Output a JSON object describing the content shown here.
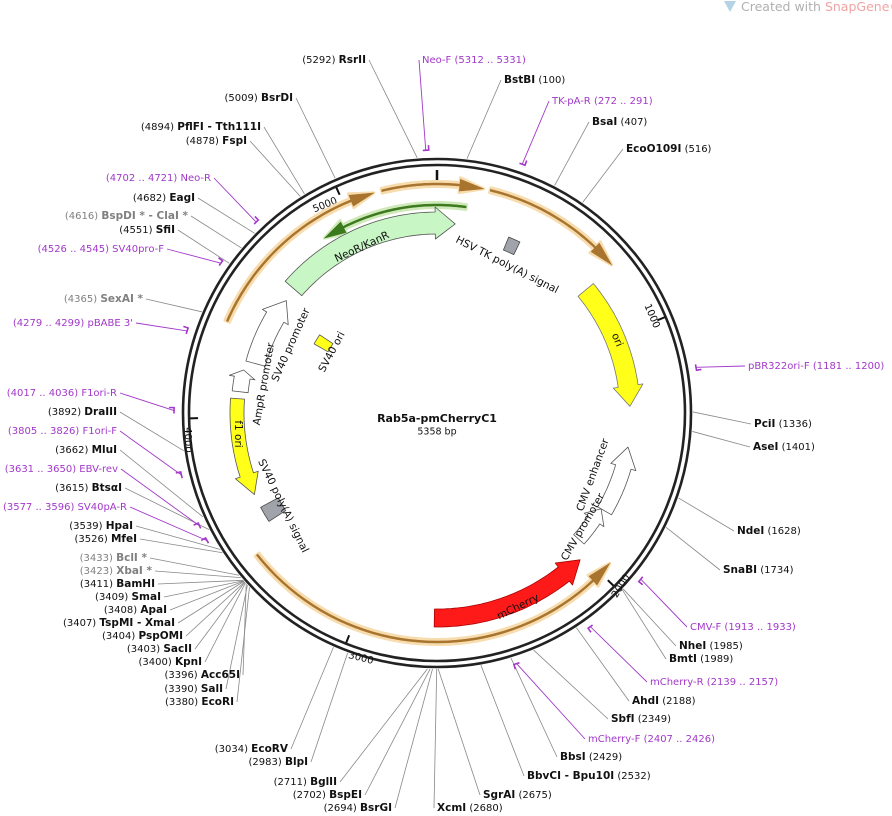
{
  "header": {
    "prefix": "Created with",
    "brand": "SnapGene®"
  },
  "plasmid": {
    "name": "Rab5a-pmCherryC1",
    "length": "5358 bp"
  },
  "ruler": [
    1000,
    2000,
    3000,
    4000,
    5000
  ],
  "site_color": "#111111",
  "primer_color": "#a238c9",
  "sites": [
    {
      "name": "BstBI",
      "position": "(100)"
    },
    {
      "name": "BsaI",
      "position": "(407)"
    },
    {
      "name": "EcoO109I",
      "position": "(516)"
    },
    {
      "name": "PciI",
      "position": "(1336)"
    },
    {
      "name": "AseI",
      "position": "(1401)"
    },
    {
      "name": "NdeI",
      "position": "(1628)"
    },
    {
      "name": "SnaBI",
      "position": "(1734)"
    },
    {
      "name": "NheI",
      "position": "(1985)"
    },
    {
      "name": "BmtI",
      "position": "(1989)"
    },
    {
      "name": "AhdI",
      "position": "(2188)"
    },
    {
      "name": "SbfI",
      "position": "(2349)"
    },
    {
      "name": "BbsI",
      "position": "(2429)"
    },
    {
      "name": "BbvCI - Bpu10I",
      "position": "(2532)"
    },
    {
      "name": "SgrAI",
      "position": "(2675)"
    },
    {
      "name": "XcmI",
      "position": "(2680)"
    },
    {
      "name": "BsrGI",
      "position": "(2694)"
    },
    {
      "name": "BspEI",
      "position": "(2702)"
    },
    {
      "name": "BglII",
      "position": "(2711)"
    },
    {
      "name": "BlpI",
      "position": "(2983)"
    },
    {
      "name": "EcoRV",
      "position": "(3034)"
    },
    {
      "name": "EcoRI",
      "position": "(3380)"
    },
    {
      "name": "SalI",
      "position": "(3390)"
    },
    {
      "name": "Acc65I",
      "position": "(3396)"
    },
    {
      "name": "KpnI",
      "position": "(3400)"
    },
    {
      "name": "SacII",
      "position": "(3403)"
    },
    {
      "name": "PspOMI",
      "position": "(3404)"
    },
    {
      "name": "TspMI - XmaI",
      "position": "(3407)"
    },
    {
      "name": "ApaI",
      "position": "(3408)"
    },
    {
      "name": "SmaI",
      "position": "(3409)"
    },
    {
      "name": "BamHI",
      "position": "(3411)"
    },
    {
      "name": "XbaI *",
      "position": "(3423)",
      "color": "#808080"
    },
    {
      "name": "BclI *",
      "position": "(3433)",
      "color": "#808080"
    },
    {
      "name": "MfeI",
      "position": "(3526)"
    },
    {
      "name": "HpaI",
      "position": "(3539)"
    },
    {
      "name": "BtsαI",
      "position": "(3615)"
    },
    {
      "name": "MluI",
      "position": "(3662)"
    },
    {
      "name": "DraIII",
      "position": "(3892)"
    },
    {
      "name": "SexAI *",
      "position": "(4365)",
      "color": "#808080"
    },
    {
      "name": "SfiI",
      "position": "(4551)"
    },
    {
      "name": "BspDI * - ClaI *",
      "position": "(4616)",
      "color": "#808080"
    },
    {
      "name": "EagI",
      "position": "(4682)"
    },
    {
      "name": "FspI",
      "position": "(4878)"
    },
    {
      "name": "PflFI - Tth111I",
      "position": "(4894)"
    },
    {
      "name": "BsrDI",
      "position": "(5009)"
    },
    {
      "name": "RsrII",
      "position": "(5292)"
    }
  ],
  "primers": [
    {
      "name": "Neo-F",
      "range": "(5312 .. 5331)"
    },
    {
      "name": "TK-pA-R",
      "range": "(272 .. 291)"
    },
    {
      "name": "pBR322ori-F",
      "range": "(1181 .. 1200)"
    },
    {
      "name": "CMV-F",
      "range": "(1913 .. 1933)"
    },
    {
      "name": "mCherry-R",
      "range": "(2139 .. 2157)"
    },
    {
      "name": "mCherry-F",
      "range": "(2407 .. 2426)"
    },
    {
      "name": "SV40pA-R",
      "range": "(3577 .. 3596)"
    },
    {
      "name": "EBV-rev",
      "range": "(3631 .. 3650)"
    },
    {
      "name": "F1ori-F",
      "range": "(3805 .. 3826)"
    },
    {
      "name": "F1ori-R",
      "range": "(4017 .. 4036)"
    },
    {
      "name": "pBABE 3'",
      "range": "(4279 .. 4299)"
    },
    {
      "name": "SV40pro-F",
      "range": "(4526 .. 4545)"
    },
    {
      "name": "Neo-R",
      "range": "(4702 .. 4721)"
    }
  ],
  "features": [
    {
      "name": "NeoR/KanR"
    },
    {
      "name": "HSV TK poly(A) signal"
    },
    {
      "name": "ori"
    },
    {
      "name": "SV40 ori"
    },
    {
      "name": "SV40 promoter"
    },
    {
      "name": "AmpR promoter"
    },
    {
      "name": "f1 ori"
    },
    {
      "name": "SV40 poly(A) signal"
    },
    {
      "name": "CMV enhancer"
    },
    {
      "name": "CMV promoter"
    },
    {
      "name": "mCherry"
    }
  ]
}
